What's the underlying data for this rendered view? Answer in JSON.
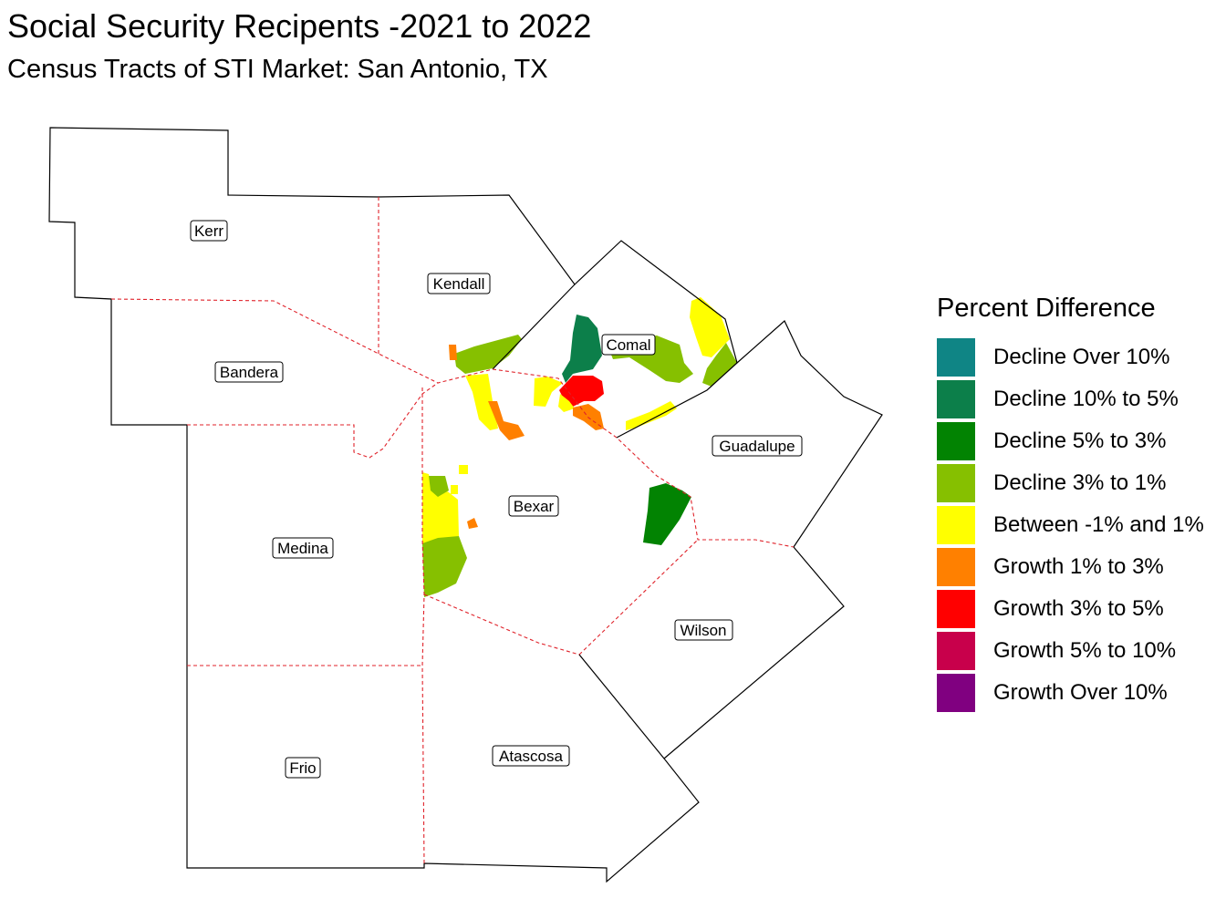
{
  "title": "Social Security Recipents -2021 to 2022",
  "subtitle": "Census Tracts of STI Market: San Antonio, TX",
  "counties": [
    {
      "id": "kerr",
      "label": "Kerr"
    },
    {
      "id": "kendall",
      "label": "Kendall"
    },
    {
      "id": "bandera",
      "label": "Bandera"
    },
    {
      "id": "comal",
      "label": "Comal"
    },
    {
      "id": "guadalupe",
      "label": "Guadalupe"
    },
    {
      "id": "bexar",
      "label": "Bexar"
    },
    {
      "id": "medina",
      "label": "Medina"
    },
    {
      "id": "wilson",
      "label": "Wilson"
    },
    {
      "id": "atascosa",
      "label": "Atascosa"
    },
    {
      "id": "frio",
      "label": "Frio"
    }
  ],
  "legend": {
    "title": "Percent Difference",
    "items": [
      {
        "label": "Decline Over 10%",
        "color": "#0f8585"
      },
      {
        "label": "Decline 10% to 5%",
        "color": "#0c7f4a"
      },
      {
        "label": "Decline 5% to 3%",
        "color": "#028302"
      },
      {
        "label": "Decline 3% to 1%",
        "color": "#86c000"
      },
      {
        "label": "Between -1% and 1%",
        "color": "#ffff00"
      },
      {
        "label": "Growth 1% to 3%",
        "color": "#ff8000"
      },
      {
        "label": "Growth 3% to 5%",
        "color": "#ff0000"
      },
      {
        "label": "Growth 5% to 10%",
        "color": "#c8004b"
      },
      {
        "label": "Growth Over 10%",
        "color": "#800080"
      }
    ]
  }
}
